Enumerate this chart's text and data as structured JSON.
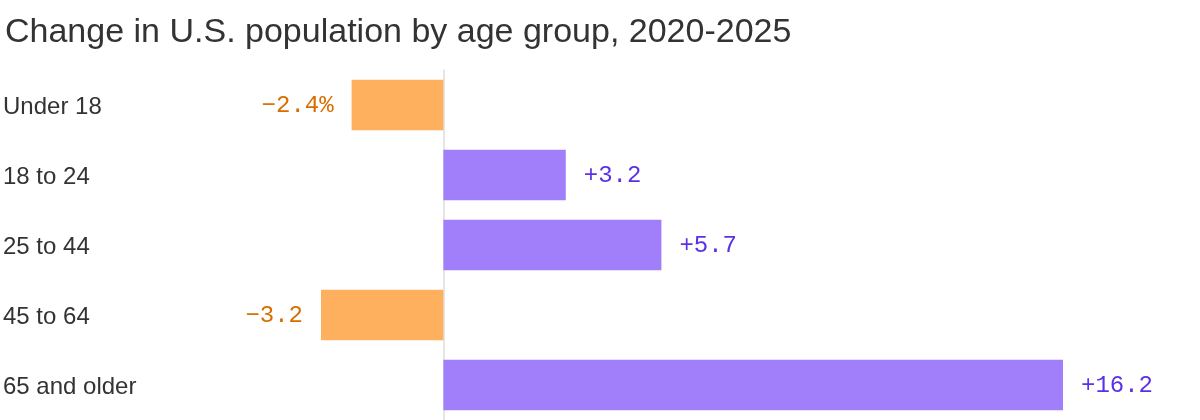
{
  "chart_data": {
    "type": "bar",
    "orientation": "horizontal",
    "title": "Change in U.S. population by age group, 2020-2025",
    "categories": [
      "Under 18",
      "18 to 24",
      "25 to 44",
      "45 to 64",
      "65 and older"
    ],
    "values": [
      -2.4,
      3.2,
      5.7,
      -3.2,
      16.2
    ],
    "colors": [
      "#ffb05f",
      "#a17ffb",
      "#a17ffb",
      "#ffb05f",
      "#a17ffb"
    ],
    "value_labels": [
      "−2.4%",
      "+3.2",
      "+5.7",
      "−3.2",
      "+16.2"
    ]
  }
}
